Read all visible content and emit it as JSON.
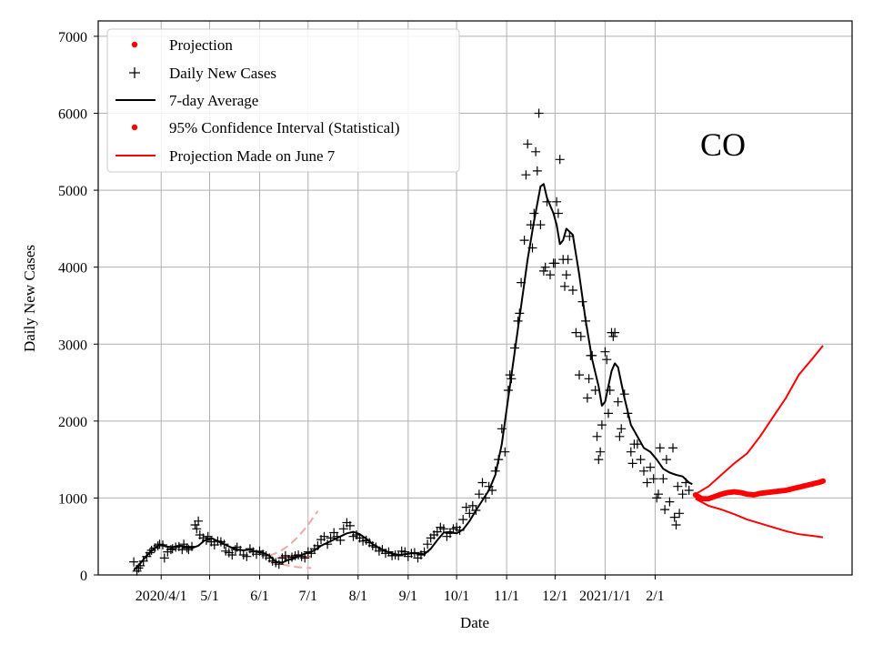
{
  "chart_data": {
    "type": "line",
    "region_label": "CO",
    "xlabel": "Date",
    "ylabel": "Daily New Cases",
    "grid": true,
    "legend_position": "top-left",
    "x_unit": "days since 2020-03-01",
    "xlim": [
      -8,
      459
    ],
    "ylim": [
      0,
      7200
    ],
    "x_ticks": [
      {
        "day": 31,
        "label": "2020/4/1"
      },
      {
        "day": 61,
        "label": "5/1"
      },
      {
        "day": 92,
        "label": "6/1"
      },
      {
        "day": 122,
        "label": "7/1"
      },
      {
        "day": 153,
        "label": "8/1"
      },
      {
        "day": 184,
        "label": "9/1"
      },
      {
        "day": 214,
        "label": "10/1"
      },
      {
        "day": 245,
        "label": "11/1"
      },
      {
        "day": 275,
        "label": "12/1"
      },
      {
        "day": 306,
        "label": "2021/1/1"
      },
      {
        "day": 337,
        "label": "2/1"
      }
    ],
    "y_ticks": [
      0,
      1000,
      2000,
      3000,
      4000,
      5000,
      6000,
      7000
    ],
    "legend": [
      {
        "label": "Projection",
        "style": "red-dot"
      },
      {
        "label": "Daily New Cases",
        "style": "black-plus"
      },
      {
        "label": "7-day Average",
        "style": "black-line"
      },
      {
        "label": "95% Confidence Interval (Statistical)",
        "style": "red-dot"
      },
      {
        "label": "Projection Made on June 7",
        "style": "red-line"
      }
    ],
    "series": [
      {
        "name": "7-day Average",
        "color": "#000000",
        "points": [
          [
            14,
            60
          ],
          [
            18,
            150
          ],
          [
            22,
            250
          ],
          [
            26,
            330
          ],
          [
            30,
            390
          ],
          [
            34,
            370
          ],
          [
            38,
            360
          ],
          [
            42,
            380
          ],
          [
            46,
            370
          ],
          [
            50,
            350
          ],
          [
            54,
            380
          ],
          [
            58,
            450
          ],
          [
            62,
            480
          ],
          [
            66,
            440
          ],
          [
            70,
            400
          ],
          [
            74,
            360
          ],
          [
            78,
            330
          ],
          [
            82,
            320
          ],
          [
            86,
            330
          ],
          [
            90,
            300
          ],
          [
            94,
            290
          ],
          [
            98,
            250
          ],
          [
            102,
            170
          ],
          [
            106,
            160
          ],
          [
            110,
            200
          ],
          [
            114,
            220
          ],
          [
            118,
            260
          ],
          [
            122,
            290
          ],
          [
            126,
            320
          ],
          [
            130,
            380
          ],
          [
            134,
            420
          ],
          [
            138,
            460
          ],
          [
            142,
            500
          ],
          [
            146,
            540
          ],
          [
            150,
            560
          ],
          [
            154,
            530
          ],
          [
            158,
            470
          ],
          [
            162,
            400
          ],
          [
            166,
            350
          ],
          [
            170,
            310
          ],
          [
            174,
            280
          ],
          [
            178,
            260
          ],
          [
            182,
            270
          ],
          [
            186,
            280
          ],
          [
            190,
            280
          ],
          [
            194,
            270
          ],
          [
            198,
            340
          ],
          [
            202,
            450
          ],
          [
            206,
            550
          ],
          [
            210,
            560
          ],
          [
            214,
            540
          ],
          [
            218,
            590
          ],
          [
            222,
            700
          ],
          [
            226,
            840
          ],
          [
            230,
            970
          ],
          [
            234,
            1100
          ],
          [
            238,
            1300
          ],
          [
            242,
            1700
          ],
          [
            246,
            2300
          ],
          [
            250,
            2900
          ],
          [
            254,
            3500
          ],
          [
            258,
            4100
          ],
          [
            262,
            4600
          ],
          [
            266,
            5050
          ],
          [
            268,
            5080
          ],
          [
            270,
            4900
          ],
          [
            274,
            4700
          ],
          [
            276,
            4550
          ],
          [
            278,
            4300
          ],
          [
            280,
            4350
          ],
          [
            282,
            4500
          ],
          [
            286,
            4420
          ],
          [
            290,
            3900
          ],
          [
            294,
            3300
          ],
          [
            298,
            2800
          ],
          [
            302,
            2450
          ],
          [
            304,
            2200
          ],
          [
            306,
            2250
          ],
          [
            310,
            2650
          ],
          [
            312,
            2750
          ],
          [
            314,
            2700
          ],
          [
            318,
            2300
          ],
          [
            322,
            1950
          ],
          [
            326,
            1800
          ],
          [
            330,
            1650
          ],
          [
            334,
            1600
          ],
          [
            338,
            1500
          ],
          [
            342,
            1380
          ],
          [
            346,
            1330
          ],
          [
            350,
            1300
          ],
          [
            354,
            1280
          ],
          [
            358,
            1200
          ],
          [
            360,
            1180
          ]
        ]
      },
      {
        "name": "Projection",
        "color": "#ff0000",
        "points": [
          [
            362,
            1040
          ],
          [
            366,
            990
          ],
          [
            370,
            990
          ],
          [
            374,
            1020
          ],
          [
            378,
            1050
          ],
          [
            382,
            1070
          ],
          [
            386,
            1080
          ],
          [
            390,
            1070
          ],
          [
            394,
            1050
          ],
          [
            398,
            1040
          ],
          [
            402,
            1060
          ],
          [
            406,
            1070
          ],
          [
            410,
            1080
          ],
          [
            414,
            1090
          ],
          [
            418,
            1100
          ],
          [
            422,
            1120
          ],
          [
            426,
            1140
          ],
          [
            430,
            1160
          ],
          [
            434,
            1180
          ],
          [
            438,
            1200
          ],
          [
            441,
            1220
          ]
        ]
      },
      {
        "name": "95% Confidence Interval upper",
        "color": "#ff0000",
        "points": [
          [
            362,
            1050
          ],
          [
            370,
            1150
          ],
          [
            378,
            1300
          ],
          [
            386,
            1450
          ],
          [
            394,
            1580
          ],
          [
            402,
            1800
          ],
          [
            410,
            2050
          ],
          [
            418,
            2300
          ],
          [
            426,
            2600
          ],
          [
            434,
            2800
          ],
          [
            441,
            2980
          ]
        ]
      },
      {
        "name": "95% Confidence Interval lower",
        "color": "#ff0000",
        "points": [
          [
            362,
            990
          ],
          [
            370,
            900
          ],
          [
            378,
            850
          ],
          [
            386,
            790
          ],
          [
            394,
            720
          ],
          [
            402,
            670
          ],
          [
            410,
            620
          ],
          [
            418,
            570
          ],
          [
            426,
            530
          ],
          [
            434,
            510
          ],
          [
            441,
            490
          ]
        ]
      },
      {
        "name": "Projection Made on June 7 (lower band)",
        "color": "#f4a6a6",
        "points": [
          [
            98,
            190
          ],
          [
            104,
            150
          ],
          [
            110,
            120
          ],
          [
            116,
            100
          ],
          [
            124,
            90
          ]
        ]
      },
      {
        "name": "Projection Made on June 7 (upper band)",
        "color": "#f4a6a6",
        "points": [
          [
            98,
            250
          ],
          [
            104,
            300
          ],
          [
            110,
            380
          ],
          [
            116,
            500
          ],
          [
            122,
            650
          ],
          [
            128,
            830
          ]
        ]
      }
    ],
    "daily_new_cases": [
      [
        14,
        170
      ],
      [
        16,
        50
      ],
      [
        17,
        90
      ],
      [
        18,
        120
      ],
      [
        20,
        180
      ],
      [
        22,
        240
      ],
      [
        24,
        290
      ],
      [
        25,
        320
      ],
      [
        27,
        350
      ],
      [
        29,
        380
      ],
      [
        30,
        400
      ],
      [
        32,
        390
      ],
      [
        33,
        220
      ],
      [
        35,
        300
      ],
      [
        37,
        330
      ],
      [
        38,
        340
      ],
      [
        40,
        360
      ],
      [
        42,
        370
      ],
      [
        44,
        330
      ],
      [
        45,
        400
      ],
      [
        47,
        350
      ],
      [
        48,
        330
      ],
      [
        50,
        370
      ],
      [
        52,
        650
      ],
      [
        53,
        600
      ],
      [
        54,
        700
      ],
      [
        55,
        520
      ],
      [
        57,
        480
      ],
      [
        59,
        450
      ],
      [
        60,
        500
      ],
      [
        62,
        430
      ],
      [
        64,
        390
      ],
      [
        66,
        440
      ],
      [
        68,
        430
      ],
      [
        70,
        400
      ],
      [
        71,
        310
      ],
      [
        73,
        290
      ],
      [
        75,
        260
      ],
      [
        77,
        330
      ],
      [
        78,
        360
      ],
      [
        80,
        320
      ],
      [
        82,
        260
      ],
      [
        84,
        240
      ],
      [
        86,
        340
      ],
      [
        88,
        300
      ],
      [
        90,
        270
      ],
      [
        92,
        310
      ],
      [
        94,
        270
      ],
      [
        96,
        250
      ],
      [
        98,
        220
      ],
      [
        100,
        180
      ],
      [
        102,
        160
      ],
      [
        104,
        140
      ],
      [
        106,
        220
      ],
      [
        108,
        250
      ],
      [
        110,
        200
      ],
      [
        112,
        230
      ],
      [
        114,
        250
      ],
      [
        116,
        260
      ],
      [
        118,
        240
      ],
      [
        120,
        220
      ],
      [
        122,
        300
      ],
      [
        124,
        280
      ],
      [
        126,
        340
      ],
      [
        128,
        380
      ],
      [
        130,
        460
      ],
      [
        132,
        500
      ],
      [
        134,
        400
      ],
      [
        136,
        480
      ],
      [
        138,
        550
      ],
      [
        140,
        500
      ],
      [
        142,
        450
      ],
      [
        144,
        600
      ],
      [
        146,
        680
      ],
      [
        148,
        640
      ],
      [
        150,
        500
      ],
      [
        152,
        520
      ],
      [
        154,
        480
      ],
      [
        156,
        440
      ],
      [
        158,
        450
      ],
      [
        160,
        420
      ],
      [
        162,
        380
      ],
      [
        164,
        360
      ],
      [
        166,
        310
      ],
      [
        168,
        330
      ],
      [
        170,
        280
      ],
      [
        172,
        300
      ],
      [
        174,
        250
      ],
      [
        176,
        260
      ],
      [
        178,
        250
      ],
      [
        180,
        310
      ],
      [
        182,
        300
      ],
      [
        184,
        240
      ],
      [
        186,
        280
      ],
      [
        188,
        290
      ],
      [
        190,
        220
      ],
      [
        192,
        260
      ],
      [
        194,
        300
      ],
      [
        196,
        400
      ],
      [
        198,
        480
      ],
      [
        200,
        520
      ],
      [
        202,
        560
      ],
      [
        204,
        620
      ],
      [
        206,
        600
      ],
      [
        208,
        500
      ],
      [
        210,
        540
      ],
      [
        212,
        600
      ],
      [
        214,
        620
      ],
      [
        216,
        580
      ],
      [
        218,
        720
      ],
      [
        220,
        880
      ],
      [
        222,
        800
      ],
      [
        224,
        900
      ],
      [
        226,
        840
      ],
      [
        228,
        1050
      ],
      [
        230,
        1200
      ],
      [
        232,
        1000
      ],
      [
        234,
        1150
      ],
      [
        236,
        1100
      ],
      [
        238,
        1350
      ],
      [
        240,
        1500
      ],
      [
        242,
        1900
      ],
      [
        244,
        1600
      ],
      [
        246,
        2400
      ],
      [
        247,
        2600
      ],
      [
        248,
        2550
      ],
      [
        250,
        2950
      ],
      [
        252,
        3300
      ],
      [
        253,
        3400
      ],
      [
        254,
        3800
      ],
      [
        256,
        4350
      ],
      [
        257,
        5200
      ],
      [
        258,
        5600
      ],
      [
        260,
        4550
      ],
      [
        261,
        4250
      ],
      [
        262,
        4700
      ],
      [
        263,
        5500
      ],
      [
        264,
        5250
      ],
      [
        265,
        6000
      ],
      [
        266,
        4550
      ],
      [
        268,
        3950
      ],
      [
        269,
        4000
      ],
      [
        270,
        4850
      ],
      [
        272,
        3900
      ],
      [
        274,
        4050
      ],
      [
        275,
        4050
      ],
      [
        276,
        4850
      ],
      [
        277,
        4700
      ],
      [
        278,
        5400
      ],
      [
        280,
        4100
      ],
      [
        281,
        3750
      ],
      [
        282,
        3900
      ],
      [
        283,
        4100
      ],
      [
        284,
        4400
      ],
      [
        286,
        3700
      ],
      [
        288,
        3150
      ],
      [
        290,
        2600
      ],
      [
        291,
        3100
      ],
      [
        292,
        3550
      ],
      [
        294,
        3300
      ],
      [
        295,
        2300
      ],
      [
        296,
        2550
      ],
      [
        297,
        2850
      ],
      [
        298,
        2850
      ],
      [
        300,
        2400
      ],
      [
        301,
        1800
      ],
      [
        302,
        1500
      ],
      [
        303,
        1600
      ],
      [
        304,
        1950
      ],
      [
        306,
        2900
      ],
      [
        307,
        2800
      ],
      [
        308,
        2100
      ],
      [
        309,
        2400
      ],
      [
        310,
        3150
      ],
      [
        311,
        3100
      ],
      [
        312,
        3150
      ],
      [
        314,
        2250
      ],
      [
        315,
        1800
      ],
      [
        316,
        1900
      ],
      [
        318,
        2350
      ],
      [
        320,
        2100
      ],
      [
        322,
        1600
      ],
      [
        323,
        1450
      ],
      [
        324,
        1700
      ],
      [
        326,
        1700
      ],
      [
        328,
        1500
      ],
      [
        330,
        1350
      ],
      [
        332,
        1200
      ],
      [
        334,
        1400
      ],
      [
        336,
        1250
      ],
      [
        338,
        1000
      ],
      [
        339,
        1050
      ],
      [
        340,
        1650
      ],
      [
        342,
        1250
      ],
      [
        343,
        850
      ],
      [
        344,
        1500
      ],
      [
        346,
        950
      ],
      [
        348,
        1650
      ],
      [
        349,
        750
      ],
      [
        350,
        650
      ],
      [
        351,
        1150
      ],
      [
        352,
        800
      ],
      [
        354,
        1050
      ],
      [
        356,
        1200
      ],
      [
        358,
        1100
      ]
    ]
  }
}
